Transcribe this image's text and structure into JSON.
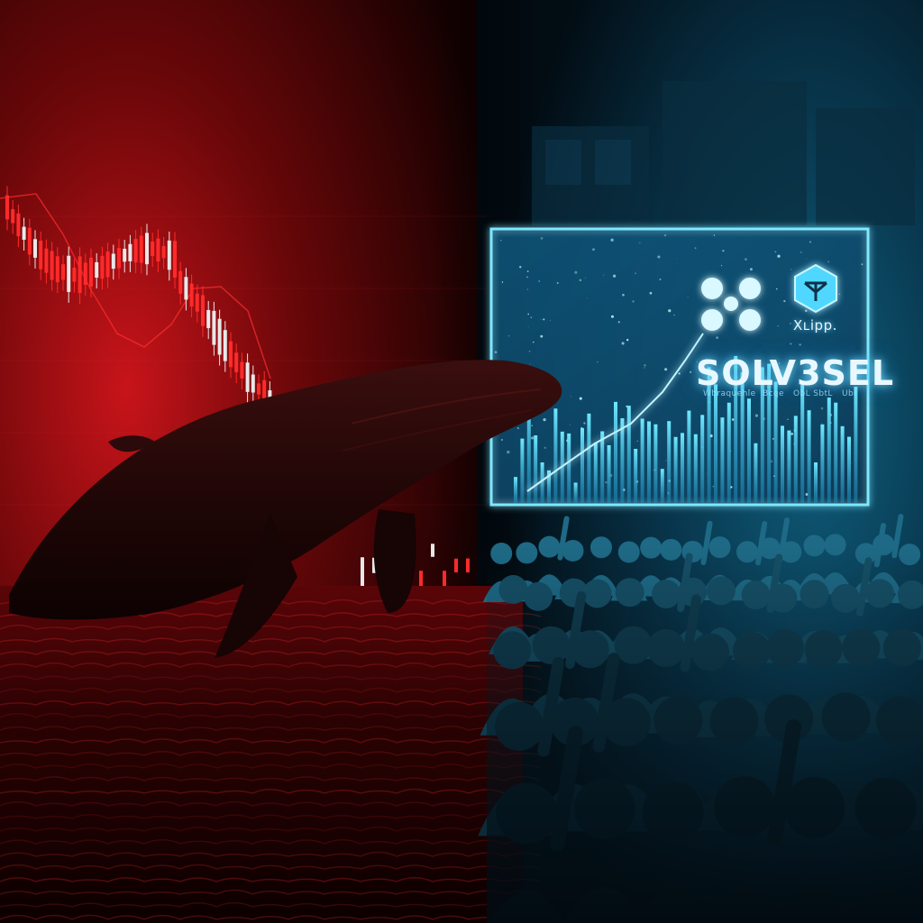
{
  "scene": {
    "description_free": true,
    "left_tone": "#c4141c",
    "right_tone": "#19a9d9",
    "background": "#050505"
  },
  "panel": {
    "brand_name": "Xʟipp.",
    "headline": "SOLV3SEL",
    "subtext": [
      "Wbraquehle",
      "Bcqe",
      "ObL SbtL",
      "Ubl"
    ],
    "icons": [
      "ripple-logo-icon",
      "cube-logo-icon"
    ],
    "accent": "#5fe3ff"
  },
  "left_chart": {
    "type": "candlestick",
    "trend": "down",
    "colors": {
      "up": "#e8e8e8",
      "down": "#ff2a2a"
    }
  }
}
